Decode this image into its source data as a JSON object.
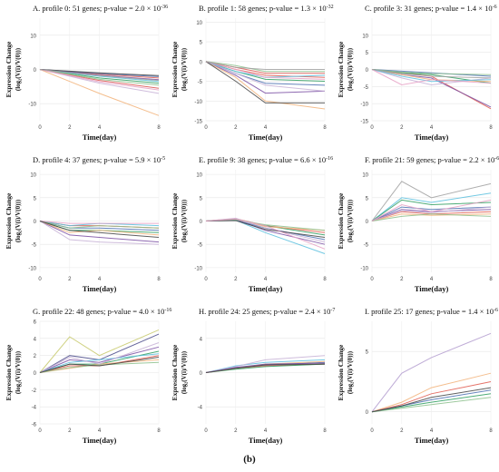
{
  "figure_caption": "(b)",
  "chart_data": [
    {
      "type": "line",
      "title": "A. profile 0: 51 genes; p-value = 2.0 × 10^-36",
      "title_main": "A. profile 0: 51 genes; p-value = 2.0 × 10",
      "title_exp": "-36",
      "xlabel": "Time(day)",
      "ylabel_1": "Expression Change",
      "ylabel_2": "(log₂(V(i)/V(0)))",
      "x": [
        0,
        2,
        4,
        8
      ],
      "xticks": [
        "0",
        "2",
        "4",
        "8"
      ],
      "ylim": [
        -15,
        15
      ],
      "yticks": [
        10,
        0,
        -10
      ],
      "grid": true,
      "series": [
        {
          "color": "#e05a4f",
          "values": [
            0,
            -0.7,
            -1.4,
            -2.5
          ]
        },
        {
          "color": "#4a6fb0",
          "values": [
            0,
            -0.6,
            -1.2,
            -2.1
          ]
        },
        {
          "color": "#7a4fa3",
          "values": [
            0,
            -0.8,
            -1.7,
            -3.0
          ]
        },
        {
          "color": "#2e9e5f",
          "values": [
            0,
            -1.2,
            -2.5,
            -4.0
          ]
        },
        {
          "color": "#f2b37a",
          "values": [
            0,
            -3.5,
            -7.0,
            -13.5
          ]
        },
        {
          "color": "#c7b2d6",
          "values": [
            0,
            -2.0,
            -4.0,
            -7.0
          ]
        },
        {
          "color": "#d9534f",
          "values": [
            0,
            -1.6,
            -3.2,
            -5.5
          ]
        },
        {
          "color": "#5bc0de",
          "values": [
            0,
            -1.0,
            -2.0,
            -3.5
          ]
        },
        {
          "color": "#8cc08c",
          "values": [
            0,
            -1.4,
            -2.9,
            -4.6
          ]
        },
        {
          "color": "#444444",
          "values": [
            0,
            -0.5,
            -1.0,
            -1.8
          ]
        },
        {
          "color": "#e6a0c4",
          "values": [
            0,
            -1.8,
            -3.6,
            -6.0
          ]
        },
        {
          "color": "#a0a0a0",
          "values": [
            0,
            -0.9,
            -1.8,
            -3.2
          ]
        }
      ]
    },
    {
      "type": "line",
      "title": "B. profile 1: 58 genes; p-value = 1.3 × 10^-32",
      "title_main": "B. profile 1: 58 genes; p-value = 1.3 × 10",
      "title_exp": "-32",
      "xlabel": "Time(day)",
      "ylabel_1": "Expression Change",
      "ylabel_2": "(log₂(V(i)/V(0)))",
      "x": [
        0,
        2,
        4,
        8
      ],
      "xticks": [
        "0",
        "2",
        "4",
        "8"
      ],
      "ylim": [
        -15,
        11
      ],
      "yticks": [
        10,
        5,
        0,
        -5,
        -10,
        -15
      ],
      "grid": true,
      "series": [
        {
          "color": "#e05a4f",
          "values": [
            0,
            -2.0,
            -3.5,
            -4.0
          ]
        },
        {
          "color": "#4a6fb0",
          "values": [
            0,
            -3.0,
            -5.5,
            -6.0
          ]
        },
        {
          "color": "#7a4fa3",
          "values": [
            0,
            -3.5,
            -8.0,
            -7.5
          ]
        },
        {
          "color": "#2e9e5f",
          "values": [
            0,
            -2.5,
            -4.5,
            -5.0
          ]
        },
        {
          "color": "#f2b37a",
          "values": [
            0,
            -4.0,
            -10.0,
            -12.0
          ]
        },
        {
          "color": "#c7b2d6",
          "values": [
            0,
            -3.0,
            -6.0,
            -7.5
          ]
        },
        {
          "color": "#d9534f",
          "values": [
            0,
            -1.5,
            -3.0,
            -3.0
          ]
        },
        {
          "color": "#5bc0de",
          "values": [
            0,
            -2.5,
            -4.0,
            -3.5
          ]
        },
        {
          "color": "#8cc08c",
          "values": [
            0,
            -1.0,
            -2.5,
            -2.5
          ]
        },
        {
          "color": "#444444",
          "values": [
            0,
            -5.0,
            -10.5,
            -10.5
          ]
        },
        {
          "color": "#e6a0c4",
          "values": [
            0,
            -2.0,
            -4.0,
            -4.5
          ]
        },
        {
          "color": "#a0a0a0",
          "values": [
            0,
            -1.5,
            -2.0,
            -2.0
          ]
        }
      ]
    },
    {
      "type": "line",
      "title": "C. profile 3: 31 genes; p-value = 1.4 × 10^-6",
      "title_main": "C. profile 3: 31 genes; p-value = 1.4 × 10",
      "title_exp": "-6",
      "xlabel": "Time(day)",
      "ylabel_1": "Expression Change",
      "ylabel_2": "(log₂(V(i)/V(0)))",
      "x": [
        0,
        2,
        4,
        8
      ],
      "xticks": [
        "0",
        "2",
        "4",
        "8"
      ],
      "ylim": [
        -15,
        15
      ],
      "yticks": [
        10,
        5,
        0,
        -5,
        -10,
        -15
      ],
      "grid": true,
      "series": [
        {
          "color": "#e05a4f",
          "values": [
            0,
            -1.0,
            -2.0,
            -11.5
          ]
        },
        {
          "color": "#7a4fa3",
          "values": [
            0,
            -1.5,
            -2.5,
            -11.0
          ]
        },
        {
          "color": "#4a6fb0",
          "values": [
            0,
            -0.5,
            -1.0,
            -2.0
          ]
        },
        {
          "color": "#2e9e5f",
          "values": [
            0,
            -1.0,
            -1.5,
            -4.0
          ]
        },
        {
          "color": "#f2b37a",
          "values": [
            0,
            -1.5,
            -3.0,
            -3.5
          ]
        },
        {
          "color": "#c7b2d6",
          "values": [
            0,
            -2.5,
            -4.5,
            -2.5
          ]
        },
        {
          "color": "#5bc0de",
          "values": [
            0,
            -2.0,
            -3.5,
            -3.0
          ]
        },
        {
          "color": "#8cc08c",
          "values": [
            0,
            -0.8,
            -1.2,
            -1.5
          ]
        },
        {
          "color": "#e6a0c4",
          "values": [
            0,
            -4.5,
            -3.0,
            -4.0
          ]
        },
        {
          "color": "#a0a0a0",
          "values": [
            0,
            -1.2,
            -2.0,
            -2.5
          ]
        }
      ]
    },
    {
      "type": "line",
      "title": "D. profile 4: 37 genes; p-value = 5.9 × 10^-5",
      "title_main": "D. profile 4: 37 genes; p-value = 5.9 × 10",
      "title_exp": "-5",
      "xlabel": "Time(day)",
      "ylabel_1": "Expression Change",
      "ylabel_2": "(log₂(V(i)/V(0)))",
      "x": [
        0,
        2,
        4,
        8
      ],
      "xticks": [
        "0",
        "2",
        "4",
        "8"
      ],
      "ylim": [
        -11,
        11
      ],
      "yticks": [
        10,
        5,
        0,
        -5,
        -10
      ],
      "grid": true,
      "series": [
        {
          "color": "#e05a4f",
          "values": [
            0,
            -1.0,
            -1.0,
            -1.5
          ]
        },
        {
          "color": "#4a6fb0",
          "values": [
            0,
            -1.5,
            -1.5,
            -2.0
          ]
        },
        {
          "color": "#7a4fa3",
          "values": [
            0,
            -3.0,
            -3.5,
            -4.5
          ]
        },
        {
          "color": "#2e9e5f",
          "values": [
            0,
            -2.0,
            -2.0,
            -2.5
          ]
        },
        {
          "color": "#f2b37a",
          "values": [
            0,
            -2.5,
            -2.0,
            -3.0
          ]
        },
        {
          "color": "#c7b2d6",
          "values": [
            0,
            -4.0,
            -4.5,
            -5.0
          ]
        },
        {
          "color": "#5bc0de",
          "values": [
            0,
            -1.0,
            -0.5,
            -1.0
          ]
        },
        {
          "color": "#8cc08c",
          "values": [
            0,
            -1.5,
            -1.0,
            -1.5
          ]
        },
        {
          "color": "#e6a0c4",
          "values": [
            0,
            -0.5,
            -0.5,
            -0.5
          ]
        },
        {
          "color": "#444444",
          "values": [
            0,
            -2.0,
            -2.5,
            -3.5
          ]
        }
      ]
    },
    {
      "type": "line",
      "title": "E. profile 9: 38 genes; p-value = 6.6 × 10^-16",
      "title_main": "E. profile 9: 38 genes; p-value = 6.6 × 10",
      "title_exp": "-16",
      "xlabel": "Time(day)",
      "ylabel_1": "Expression Change",
      "ylabel_2": "(log₂(V(i)/V(0)))",
      "x": [
        0,
        2,
        4,
        8
      ],
      "xticks": [
        "0",
        "2",
        "4",
        "8"
      ],
      "ylim": [
        -11,
        11
      ],
      "yticks": [
        10,
        5,
        0,
        -5,
        -10
      ],
      "grid": true,
      "series": [
        {
          "color": "#e05a4f",
          "values": [
            0,
            0.5,
            -1.0,
            -2.5
          ]
        },
        {
          "color": "#4a6fb0",
          "values": [
            0,
            0.2,
            -1.5,
            -4.0
          ]
        },
        {
          "color": "#7a4fa3",
          "values": [
            0,
            0.3,
            -2.0,
            -5.0
          ]
        },
        {
          "color": "#2e9e5f",
          "values": [
            0,
            0.4,
            -1.0,
            -3.0
          ]
        },
        {
          "color": "#f2b37a",
          "values": [
            0,
            0.5,
            -1.2,
            -2.0
          ]
        },
        {
          "color": "#c7b2d6",
          "values": [
            0,
            0.6,
            -1.5,
            -4.5
          ]
        },
        {
          "color": "#5bc0de",
          "values": [
            0,
            0.2,
            -2.5,
            -7.0
          ]
        },
        {
          "color": "#8cc08c",
          "values": [
            0,
            0.3,
            -0.8,
            -2.0
          ]
        },
        {
          "color": "#444444",
          "values": [
            0,
            0.1,
            -1.8,
            -3.5
          ]
        },
        {
          "color": "#e6a0c4",
          "values": [
            0,
            0.4,
            -1.0,
            -6.0
          ]
        }
      ]
    },
    {
      "type": "line",
      "title": "F. profile 21: 59 genes; p-value = 2.2 × 10^-6",
      "title_main": "F. profile 21: 59 genes; p-value = 2.2 × 10",
      "title_exp": "-6",
      "xlabel": "Time(day)",
      "ylabel_1": "Expression Change",
      "ylabel_2": "(log₂(V(i)/V(0)))",
      "x": [
        0,
        2,
        4,
        8
      ],
      "xticks": [
        "0",
        "2",
        "4",
        "8"
      ],
      "ylim": [
        -11,
        11
      ],
      "yticks": [
        10,
        5,
        0,
        -5,
        -10
      ],
      "grid": true,
      "series": [
        {
          "color": "#a0a0a0",
          "values": [
            0,
            8.5,
            5.0,
            8.0
          ]
        },
        {
          "color": "#5bc0de",
          "values": [
            0,
            5.0,
            4.0,
            6.0
          ]
        },
        {
          "color": "#2e9e5f",
          "values": [
            0,
            4.5,
            3.5,
            4.0
          ]
        },
        {
          "color": "#4a6fb0",
          "values": [
            0,
            3.0,
            2.5,
            3.0
          ]
        },
        {
          "color": "#7a4fa3",
          "values": [
            0,
            2.5,
            2.0,
            2.5
          ]
        },
        {
          "color": "#e05a4f",
          "values": [
            0,
            2.0,
            1.5,
            2.0
          ]
        },
        {
          "color": "#f2b37a",
          "values": [
            0,
            1.5,
            1.2,
            1.5
          ]
        },
        {
          "color": "#c7b2d6",
          "values": [
            0,
            2.2,
            1.8,
            3.0
          ]
        },
        {
          "color": "#8cc08c",
          "values": [
            0,
            1.0,
            1.5,
            1.0
          ]
        },
        {
          "color": "#e6a0c4",
          "values": [
            0,
            3.5,
            2.0,
            4.5
          ]
        }
      ]
    },
    {
      "type": "line",
      "title": "G. profile 22: 48 genes; p-value = 4.0 × 10^-16",
      "title_main": "G. profile 22: 48 genes; p-value = 4.0 × 10",
      "title_exp": "-16",
      "xlabel": "Time(day)",
      "ylabel_1": "Expression Change",
      "ylabel_2": "(log₂(V(i)/V(0)))",
      "x": [
        0,
        2,
        4,
        8
      ],
      "xticks": [
        "0",
        "2",
        "4",
        "8"
      ],
      "ylim": [
        -6,
        6
      ],
      "yticks": [
        6,
        4,
        2,
        0,
        -2,
        -4,
        -6
      ],
      "grid": true,
      "series": [
        {
          "color": "#c7c96b",
          "values": [
            0,
            4.2,
            2.0,
            5.0
          ]
        },
        {
          "color": "#4a4a8a",
          "values": [
            0,
            2.0,
            1.5,
            4.5
          ]
        },
        {
          "color": "#7a4fa3",
          "values": [
            0,
            1.5,
            1.2,
            3.0
          ]
        },
        {
          "color": "#2e9e5f",
          "values": [
            0,
            1.0,
            1.0,
            2.5
          ]
        },
        {
          "color": "#e05a4f",
          "values": [
            0,
            0.8,
            0.8,
            2.0
          ]
        },
        {
          "color": "#5bc0de",
          "values": [
            0,
            1.2,
            1.5,
            2.2
          ]
        },
        {
          "color": "#f2b37a",
          "values": [
            0,
            0.5,
            1.0,
            1.5
          ]
        },
        {
          "color": "#c7b2d6",
          "values": [
            0,
            1.8,
            1.0,
            3.5
          ]
        },
        {
          "color": "#8cc08c",
          "values": [
            0,
            0.6,
            0.9,
            1.2
          ]
        },
        {
          "color": "#444444",
          "values": [
            0,
            1.0,
            0.8,
            1.8
          ]
        }
      ]
    },
    {
      "type": "line",
      "title": "H. profile 24: 25 genes; p-value = 2.4 × 10^-7",
      "title_main": "H. profile 24: 25 genes; p-value = 2.4 × 10",
      "title_exp": "-7",
      "xlabel": "Time(day)",
      "ylabel_1": "Expression Change",
      "ylabel_2": "(log₂(V(i)/V(0)))",
      "x": [
        0,
        2,
        4,
        8
      ],
      "xticks": [
        "0",
        "2",
        "4",
        "8"
      ],
      "ylim": [
        -6,
        6
      ],
      "yticks": [
        4,
        0,
        -4
      ],
      "grid": true,
      "series": [
        {
          "color": "#e05a4f",
          "values": [
            0,
            0.5,
            0.8,
            1.0
          ]
        },
        {
          "color": "#4a6fb0",
          "values": [
            0,
            0.6,
            0.9,
            1.2
          ]
        },
        {
          "color": "#2e9e5f",
          "values": [
            0,
            0.4,
            0.7,
            1.0
          ]
        },
        {
          "color": "#5bc0de",
          "values": [
            0,
            0.8,
            1.2,
            1.5
          ]
        },
        {
          "color": "#c7b2d6",
          "values": [
            0,
            0.7,
            1.5,
            2.0
          ]
        },
        {
          "color": "#f2b37a",
          "values": [
            0,
            0.5,
            1.0,
            1.3
          ]
        },
        {
          "color": "#7a4fa3",
          "values": [
            0,
            0.6,
            1.0,
            1.1
          ]
        },
        {
          "color": "#444444",
          "values": [
            0,
            0.5,
            0.9,
            1.0
          ]
        }
      ]
    },
    {
      "type": "line",
      "title": "I. profile 25: 17 genes; p-value = 1.4 × 10^-6",
      "title_main": "I. profile 25: 17 genes; p-value = 1.4 × 10",
      "title_exp": "-6",
      "xlabel": "Time(day)",
      "ylabel_1": "Expression Change",
      "ylabel_2": "(log₂(V(i)/V(0)))",
      "x": [
        0,
        2,
        4,
        8
      ],
      "xticks": [
        "0",
        "2",
        "4",
        "8"
      ],
      "ylim": [
        -1,
        7.5
      ],
      "yticks": [
        5,
        0
      ],
      "grid": true,
      "series": [
        {
          "color": "#b39ccf",
          "values": [
            0,
            3.2,
            4.5,
            6.5
          ]
        },
        {
          "color": "#f2b37a",
          "values": [
            0,
            0.8,
            2.0,
            3.2
          ]
        },
        {
          "color": "#e05a4f",
          "values": [
            0,
            0.6,
            1.5,
            2.5
          ]
        },
        {
          "color": "#2e9e5f",
          "values": [
            0,
            0.4,
            0.8,
            1.5
          ]
        },
        {
          "color": "#4a6fb0",
          "values": [
            0,
            0.5,
            1.0,
            1.8
          ]
        },
        {
          "color": "#8cc08c",
          "values": [
            0,
            0.3,
            0.6,
            1.2
          ]
        },
        {
          "color": "#444444",
          "values": [
            0,
            0.5,
            1.2,
            2.0
          ]
        }
      ]
    }
  ]
}
